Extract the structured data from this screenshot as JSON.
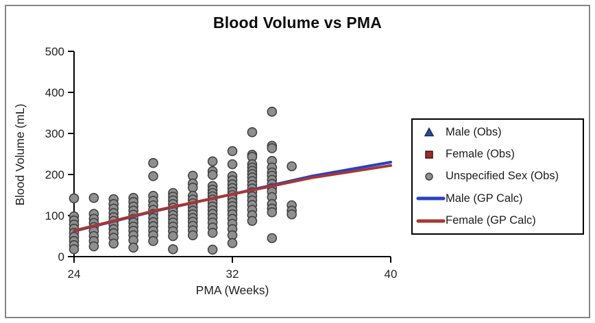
{
  "figure": {
    "title": "Blood Volume vs PMA"
  },
  "axes": {
    "x": {
      "label": "PMA (Weeks)",
      "tick_labels": [
        "24",
        "32",
        "40"
      ]
    },
    "y": {
      "label": "Blood Volume (mL)",
      "tick_labels": [
        "0",
        "100",
        "200",
        "300",
        "400",
        "500"
      ]
    }
  },
  "legend": {
    "items": [
      {
        "label": "Male (Obs)",
        "marker": "triangle",
        "fill": "#2c4a9b",
        "stroke": "#16295e"
      },
      {
        "label": "Female (Obs)",
        "marker": "square",
        "fill": "#9c2e2b",
        "stroke": "#451210"
      },
      {
        "label": "Unspecified Sex (Obs)",
        "marker": "circle",
        "fill": "#8f8f8f",
        "stroke": "#404040"
      },
      {
        "label": "Male (GP Calc)",
        "marker": "line",
        "fill": "#2741c6",
        "stroke": "#2741c6"
      },
      {
        "label": "Female (GP Calc)",
        "marker": "line",
        "fill": "#a93632",
        "stroke": "#a93632"
      }
    ]
  },
  "chart_data": {
    "type": "scatter",
    "title": "Blood Volume vs PMA",
    "xlabel": "PMA (Weeks)",
    "ylabel": "Blood Volume (mL)",
    "xlim": [
      24,
      40
    ],
    "ylim": [
      0,
      500
    ],
    "x_ticks": [
      24,
      32,
      40
    ],
    "y_ticks": [
      0,
      100,
      200,
      300,
      400,
      500
    ],
    "grid": false,
    "legend_position": "right-outside",
    "axis_color": "#000000",
    "series": [
      {
        "name": "Unspecified Sex (Obs)",
        "kind": "scatter",
        "marker": "circle",
        "fill": "#8f8f8f",
        "stroke": "#404040",
        "points": [
          [
            24,
            142
          ],
          [
            24,
            98
          ],
          [
            24,
            88
          ],
          [
            24,
            78
          ],
          [
            24,
            68
          ],
          [
            24,
            58
          ],
          [
            24,
            48
          ],
          [
            24,
            38
          ],
          [
            24,
            28
          ],
          [
            24,
            18
          ],
          [
            25,
            143
          ],
          [
            25,
            104
          ],
          [
            25,
            92
          ],
          [
            25,
            82
          ],
          [
            25,
            72
          ],
          [
            25,
            62
          ],
          [
            25,
            50
          ],
          [
            25,
            38
          ],
          [
            25,
            25
          ],
          [
            26,
            140
          ],
          [
            26,
            128
          ],
          [
            26,
            117
          ],
          [
            26,
            106
          ],
          [
            26,
            96
          ],
          [
            26,
            87
          ],
          [
            26,
            77
          ],
          [
            26,
            67
          ],
          [
            26,
            57
          ],
          [
            26,
            46
          ],
          [
            26,
            32
          ],
          [
            27,
            143
          ],
          [
            27,
            133
          ],
          [
            27,
            122
          ],
          [
            27,
            112
          ],
          [
            27,
            102
          ],
          [
            27,
            92
          ],
          [
            27,
            83
          ],
          [
            27,
            73
          ],
          [
            27,
            63
          ],
          [
            27,
            52
          ],
          [
            27,
            40
          ],
          [
            27,
            22
          ],
          [
            28,
            228
          ],
          [
            28,
            196
          ],
          [
            28,
            148
          ],
          [
            28,
            136
          ],
          [
            28,
            125
          ],
          [
            28,
            114
          ],
          [
            28,
            104
          ],
          [
            28,
            94
          ],
          [
            28,
            84
          ],
          [
            28,
            74
          ],
          [
            28,
            63
          ],
          [
            28,
            52
          ],
          [
            28,
            38
          ],
          [
            29,
            155
          ],
          [
            29,
            146
          ],
          [
            29,
            137
          ],
          [
            29,
            128
          ],
          [
            29,
            119
          ],
          [
            29,
            110
          ],
          [
            29,
            101
          ],
          [
            29,
            92
          ],
          [
            29,
            83
          ],
          [
            29,
            73
          ],
          [
            29,
            62
          ],
          [
            29,
            50
          ],
          [
            29,
            18
          ],
          [
            30,
            197
          ],
          [
            30,
            178
          ],
          [
            30,
            168
          ],
          [
            30,
            148
          ],
          [
            30,
            139
          ],
          [
            30,
            130
          ],
          [
            30,
            121
          ],
          [
            30,
            112
          ],
          [
            30,
            103
          ],
          [
            30,
            94
          ],
          [
            30,
            85
          ],
          [
            30,
            75
          ],
          [
            30,
            64
          ],
          [
            30,
            52
          ],
          [
            31,
            232
          ],
          [
            31,
            208
          ],
          [
            31,
            199
          ],
          [
            31,
            172
          ],
          [
            31,
            163
          ],
          [
            31,
            155
          ],
          [
            31,
            147
          ],
          [
            31,
            139
          ],
          [
            31,
            131
          ],
          [
            31,
            122
          ],
          [
            31,
            113
          ],
          [
            31,
            104
          ],
          [
            31,
            94
          ],
          [
            31,
            83
          ],
          [
            31,
            71
          ],
          [
            31,
            58
          ],
          [
            31,
            17
          ],
          [
            32,
            257
          ],
          [
            32,
            225
          ],
          [
            32,
            196
          ],
          [
            32,
            186
          ],
          [
            32,
            176
          ],
          [
            32,
            167
          ],
          [
            32,
            158
          ],
          [
            32,
            150
          ],
          [
            32,
            141
          ],
          [
            32,
            132
          ],
          [
            32,
            123
          ],
          [
            32,
            113
          ],
          [
            32,
            103
          ],
          [
            32,
            92
          ],
          [
            32,
            80
          ],
          [
            32,
            67
          ],
          [
            32,
            52
          ],
          [
            32,
            33
          ],
          [
            33,
            303
          ],
          [
            33,
            248
          ],
          [
            33,
            243
          ],
          [
            33,
            225
          ],
          [
            33,
            217
          ],
          [
            33,
            209
          ],
          [
            33,
            201
          ],
          [
            33,
            193
          ],
          [
            33,
            184
          ],
          [
            33,
            175
          ],
          [
            33,
            166
          ],
          [
            33,
            157
          ],
          [
            33,
            147
          ],
          [
            33,
            137
          ],
          [
            33,
            126
          ],
          [
            33,
            114
          ],
          [
            33,
            101
          ],
          [
            33,
            87
          ],
          [
            34,
            353
          ],
          [
            34,
            270
          ],
          [
            34,
            264
          ],
          [
            34,
            233
          ],
          [
            34,
            217
          ],
          [
            34,
            205
          ],
          [
            34,
            197
          ],
          [
            34,
            187
          ],
          [
            34,
            177
          ],
          [
            34,
            167
          ],
          [
            34,
            158
          ],
          [
            34,
            145
          ],
          [
            34,
            128
          ],
          [
            34,
            117
          ],
          [
            34,
            108
          ],
          [
            34,
            45
          ],
          [
            35,
            220
          ],
          [
            35,
            125
          ],
          [
            35,
            112
          ],
          [
            35,
            103
          ]
        ]
      },
      {
        "name": "Male (Obs)",
        "kind": "scatter",
        "marker": "triangle",
        "fill": "#2c4a9b",
        "stroke": "#16295e",
        "points": []
      },
      {
        "name": "Female (Obs)",
        "kind": "scatter",
        "marker": "square",
        "fill": "#9c2e2b",
        "stroke": "#451210",
        "points": []
      },
      {
        "name": "Male (GP Calc)",
        "kind": "line",
        "color": "#2741c6",
        "width": 4,
        "points": [
          [
            24,
            62
          ],
          [
            28,
            110
          ],
          [
            32,
            152
          ],
          [
            36,
            196
          ],
          [
            40,
            230
          ]
        ]
      },
      {
        "name": "Female (GP Calc)",
        "kind": "line",
        "color": "#a93632",
        "width": 4,
        "points": [
          [
            24,
            63
          ],
          [
            28,
            111
          ],
          [
            32,
            152
          ],
          [
            36,
            192
          ],
          [
            40,
            222
          ]
        ]
      }
    ]
  }
}
